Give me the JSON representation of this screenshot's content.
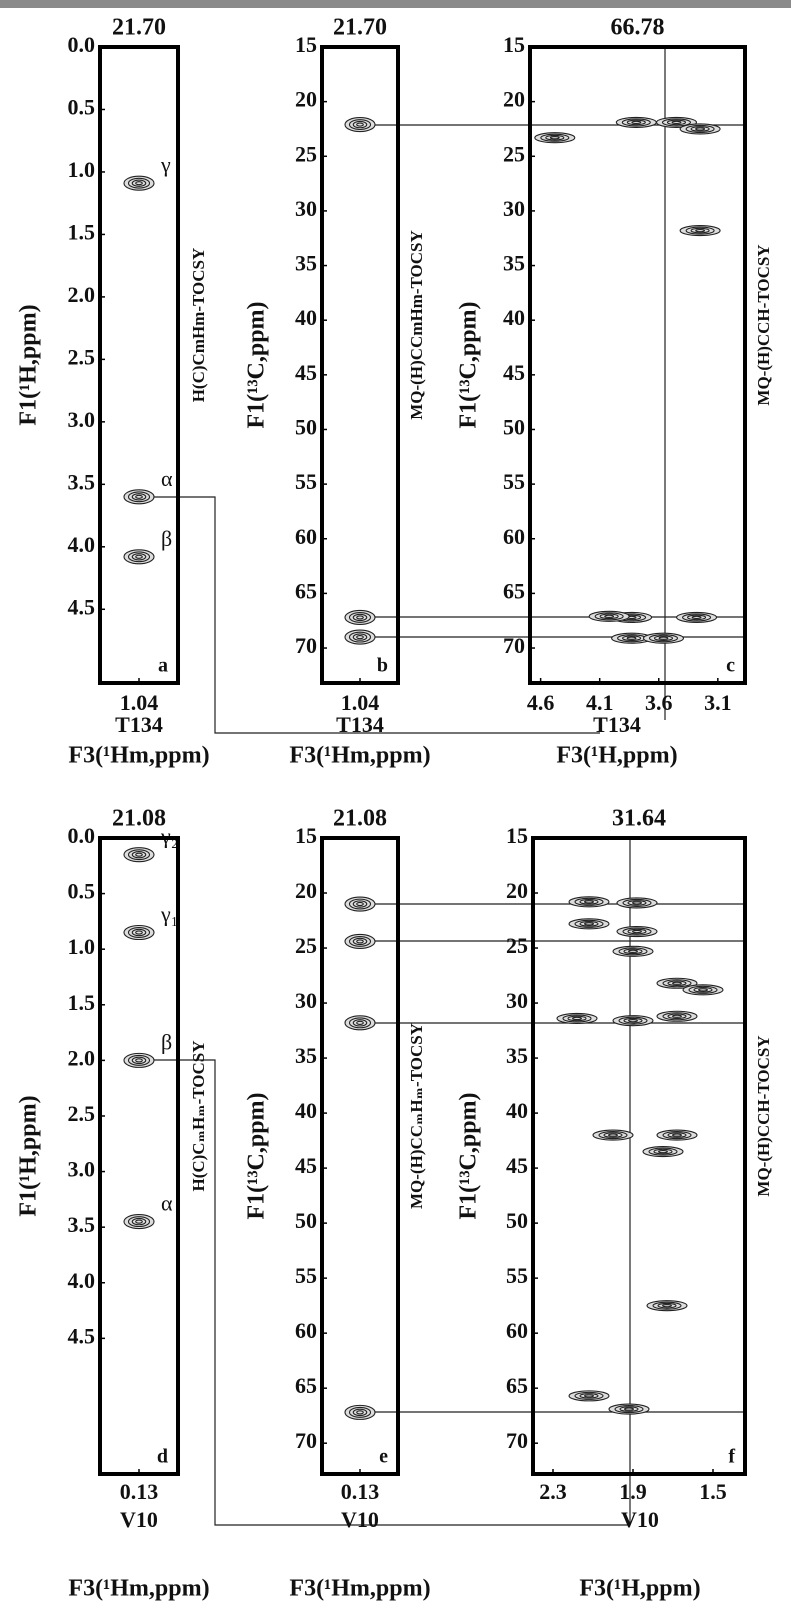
{
  "chart_data": [
    {
      "type": "scatter",
      "title": "21.70",
      "panel": "a",
      "experiment": "H(C)CmHm-TOCSY",
      "residue": "T134",
      "xlabel": "F3(¹Hm,ppm)",
      "ylabel": "F1(¹H,ppm)",
      "xlim": [
        1.14,
        0.94
      ],
      "xticks": [
        1.04
      ],
      "ylim": [
        0,
        5.09
      ],
      "yticks": [
        {
          "value": 0,
          "label": "0.0"
        },
        0.5,
        {
          "value": 1,
          "label": "1.0"
        },
        1.5,
        {
          "value": 2,
          "label": "2.0"
        },
        2.5,
        {
          "value": 3,
          "label": "3.0"
        },
        3.5,
        {
          "value": 4,
          "label": "4.0"
        },
        4.5
      ],
      "x": [
        1.04,
        1.04,
        1.04
      ],
      "y": [
        1.09,
        3.6,
        4.08
      ],
      "point_labels": [
        "γ",
        "α",
        "β"
      ],
      "color": "#222222"
    },
    {
      "type": "scatter",
      "title": "21.70",
      "panel": "b",
      "experiment": "MQ-(H)CCmHm-TOCSY",
      "residue": "T134",
      "xlabel": "F3(¹Hm,ppm)",
      "ylabel": "F1(¹³C,ppm)",
      "xlim": [
        1.14,
        0.94
      ],
      "xticks": [
        1.04
      ],
      "ylim": [
        15,
        73.2
      ],
      "yticks": [
        15,
        20,
        25,
        30,
        35,
        40,
        45,
        50,
        55,
        60,
        65,
        70
      ],
      "x": [
        1.04,
        1.04,
        1.04
      ],
      "y": [
        22.1,
        67.2,
        69.0
      ],
      "color": "#222222"
    },
    {
      "type": "scatter",
      "title": "66.78",
      "panel": "c",
      "experiment": "MQ-(H)CCH-TOCSY",
      "residue": "T134",
      "xlabel": "F3(¹H,ppm)",
      "ylabel": "F1(¹³C,ppm)",
      "xlim": [
        4.69,
        2.87
      ],
      "xticks": [
        4.6,
        4.1,
        3.6,
        3.1
      ],
      "ylim": [
        15,
        73.2
      ],
      "yticks": [
        15,
        20,
        25,
        30,
        35,
        40,
        45,
        50,
        55,
        60,
        65,
        70
      ],
      "x": [
        3.79,
        3.45,
        3.25,
        4.48,
        3.25,
        3.83,
        3.28,
        4.02,
        3.83,
        3.56
      ],
      "y": [
        21.9,
        21.9,
        22.5,
        23.3,
        31.8,
        67.2,
        67.2,
        67.1,
        69.1,
        69.1
      ],
      "color": "#222222"
    },
    {
      "type": "scatter",
      "title": "21.08",
      "panel": "d",
      "experiment": "H(C)CₘHₘ-TOCSY",
      "residue": "V10",
      "xlabel": "F3(¹Hm,ppm)",
      "ylabel": "F1(¹H,ppm)",
      "xlim": [
        0.23,
        0.03
      ],
      "xticks": [
        0.13
      ],
      "ylim": [
        0,
        5.72
      ],
      "yticks": [
        {
          "value": 0,
          "label": "0.0"
        },
        0.5,
        {
          "value": 1,
          "label": "1.0"
        },
        1.5,
        {
          "value": 2,
          "label": "2.0"
        },
        2.5,
        {
          "value": 3,
          "label": "3.0"
        },
        3.5,
        {
          "value": 4,
          "label": "4.0"
        },
        4.5
      ],
      "x": [
        0.13,
        0.13,
        0.13,
        0.13
      ],
      "y": [
        0.15,
        0.85,
        2.0,
        3.45
      ],
      "point_labels": [
        "γ₂",
        "γ₁",
        "β",
        "α"
      ],
      "color": "#222222"
    },
    {
      "type": "scatter",
      "title": "21.08",
      "panel": "e",
      "experiment": "MQ-(H)CCₘHₘ-TOCSY",
      "residue": "V10",
      "xlabel": "F3(¹Hm,ppm)",
      "ylabel": "F1(¹³C,ppm)",
      "xlim": [
        0.23,
        0.03
      ],
      "xticks": [
        0.13
      ],
      "ylim": [
        15,
        72.8
      ],
      "yticks": [
        15,
        20,
        25,
        30,
        35,
        40,
        45,
        50,
        55,
        60,
        65,
        70
      ],
      "x": [
        0.13,
        0.13,
        0.13,
        0.13
      ],
      "y": [
        21.0,
        24.4,
        31.8,
        67.2
      ],
      "color": "#222222"
    },
    {
      "type": "scatter",
      "title": "31.64",
      "panel": "f",
      "experiment": "MQ-(H)CCH-TOCSY",
      "residue": "V10",
      "xlabel": "F3(¹H,ppm)",
      "ylabel": "F1(¹³C,ppm)",
      "xlim": [
        2.4,
        1.34
      ],
      "xticks": [
        2.3,
        1.9,
        1.5
      ],
      "ylim": [
        15,
        72.8
      ],
      "yticks": [
        15,
        20,
        25,
        30,
        35,
        40,
        45,
        50,
        55,
        60,
        65,
        70
      ],
      "x": [
        2.12,
        1.88,
        2.12,
        1.88,
        1.9,
        2.18,
        1.9,
        1.68,
        1.68,
        1.55,
        2.0,
        1.68,
        1.75,
        1.73,
        2.12,
        1.92
      ],
      "y": [
        20.8,
        20.9,
        22.8,
        23.5,
        25.3,
        31.4,
        31.6,
        31.2,
        28.2,
        28.8,
        42.0,
        42.0,
        43.5,
        57.5,
        65.7,
        66.9
      ],
      "color": "#222222"
    }
  ]
}
